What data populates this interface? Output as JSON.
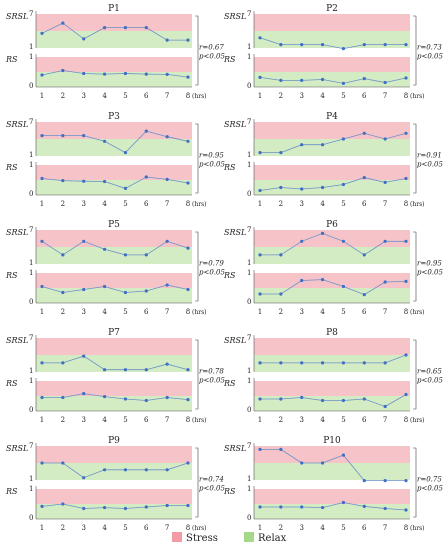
{
  "figure": {
    "x_ticks": [
      "1",
      "2",
      "3",
      "4",
      "5",
      "6",
      "7",
      "8"
    ],
    "x_unit": "(hrs)",
    "srsl_label": "SRSL",
    "srsl_top_tick": "7",
    "srsl_bottom_tick": "1",
    "rs_label": "RS",
    "rs_top_tick": "1",
    "rs_bottom_tick": "0",
    "colors": {
      "stress": "#f6c4c8",
      "relax": "#d4ecc4",
      "line": "#6a90c8",
      "dot": "#3e6fc4"
    },
    "legend": [
      {
        "label": "Stress",
        "color": "#f29aa6"
      },
      {
        "label": "Relax",
        "color": "#a6d88a"
      }
    ]
  },
  "chart_data": [
    {
      "type": "line",
      "title": "P1",
      "srsl": [
        3.6,
        5.4,
        2.6,
        4.6,
        4.6,
        4.6,
        2.4,
        2.4
      ],
      "rs": [
        0.4,
        0.55,
        0.45,
        0.43,
        0.45,
        0.43,
        0.42,
        0.33
      ],
      "r": "r=0.67",
      "p": "p<0.05",
      "ylim_srsl": [
        1,
        7
      ],
      "ylim_rs": [
        0,
        1
      ]
    },
    {
      "type": "line",
      "title": "P2",
      "srsl": [
        2.8,
        1.6,
        1.6,
        1.6,
        0.9,
        1.6,
        1.6,
        1.6
      ],
      "rs": [
        0.32,
        0.22,
        0.22,
        0.25,
        0.12,
        0.28,
        0.15,
        0.3
      ],
      "r": "r=0.73",
      "p": "p<0.05",
      "ylim_srsl": [
        1,
        7
      ],
      "ylim_rs": [
        0,
        1
      ]
    },
    {
      "type": "line",
      "title": "P3",
      "srsl": [
        4.6,
        4.6,
        4.6,
        3.6,
        1.6,
        5.4,
        4.4,
        3.6
      ],
      "rs": [
        0.55,
        0.48,
        0.46,
        0.45,
        0.22,
        0.6,
        0.52,
        0.4
      ],
      "r": "r=0.95",
      "p": "p<0.05",
      "ylim_srsl": [
        1,
        7
      ],
      "ylim_rs": [
        0,
        1
      ]
    },
    {
      "type": "line",
      "title": "P4",
      "srsl": [
        1.6,
        1.6,
        3.0,
        3.0,
        4.0,
        5.0,
        4.0,
        5.0
      ],
      "rs": [
        0.15,
        0.25,
        0.2,
        0.25,
        0.35,
        0.58,
        0.42,
        0.55
      ],
      "r": "r=0.91",
      "p": "p<0.05",
      "ylim_srsl": [
        1,
        7
      ],
      "ylim_rs": [
        0,
        1
      ]
    },
    {
      "type": "line",
      "title": "P5",
      "srsl": [
        5.0,
        2.6,
        5.0,
        3.6,
        2.6,
        2.6,
        5.0,
        3.8
      ],
      "rs": [
        0.55,
        0.35,
        0.45,
        0.55,
        0.35,
        0.4,
        0.6,
        0.45
      ],
      "r": "r=0.79",
      "p": "p<0.05",
      "ylim_srsl": [
        1,
        7
      ],
      "ylim_rs": [
        0,
        1
      ]
    },
    {
      "type": "line",
      "title": "P6",
      "srsl": [
        2.6,
        2.6,
        5.0,
        6.4,
        5.0,
        2.6,
        5.0,
        5.0
      ],
      "rs": [
        0.3,
        0.3,
        0.75,
        0.78,
        0.55,
        0.28,
        0.7,
        0.72
      ],
      "r": "r=0.95",
      "p": "p<0.05",
      "ylim_srsl": [
        1,
        7
      ],
      "ylim_rs": [
        0,
        1
      ]
    },
    {
      "type": "line",
      "title": "P7",
      "srsl": [
        2.6,
        2.6,
        3.8,
        1.4,
        1.4,
        1.4,
        2.4,
        1.4
      ],
      "rs": [
        0.45,
        0.45,
        0.58,
        0.48,
        0.4,
        0.35,
        0.45,
        0.38
      ],
      "r": "r=0.78",
      "p": "p<0.05",
      "ylim_srsl": [
        1,
        7
      ],
      "ylim_rs": [
        0,
        1
      ]
    },
    {
      "type": "line",
      "title": "P8",
      "srsl": [
        2.6,
        2.6,
        2.6,
        2.6,
        2.6,
        2.6,
        2.6,
        4.0
      ],
      "rs": [
        0.4,
        0.4,
        0.45,
        0.35,
        0.35,
        0.4,
        0.15,
        0.55
      ],
      "r": "r=0.65",
      "p": "p<0.05",
      "ylim_srsl": [
        1,
        7
      ],
      "ylim_rs": [
        0,
        1
      ]
    },
    {
      "type": "line",
      "title": "P9",
      "srsl": [
        4.0,
        4.0,
        1.4,
        2.8,
        2.8,
        2.8,
        2.8,
        4.0
      ],
      "rs": [
        0.42,
        0.5,
        0.35,
        0.38,
        0.35,
        0.4,
        0.45,
        0.45
      ],
      "r": "r=0.74",
      "p": "p<0.05",
      "ylim_srsl": [
        1,
        7
      ],
      "ylim_rs": [
        0,
        1
      ]
    },
    {
      "type": "line",
      "title": "P10",
      "srsl": [
        6.4,
        6.4,
        4.0,
        4.0,
        5.4,
        0.9,
        0.9,
        0.9
      ],
      "rs": [
        0.4,
        0.4,
        0.4,
        0.38,
        0.55,
        0.42,
        0.35,
        0.3
      ],
      "r": "r=0.75",
      "p": "p<0.05",
      "ylim_srsl": [
        1,
        7
      ],
      "ylim_rs": [
        0,
        1
      ]
    }
  ]
}
